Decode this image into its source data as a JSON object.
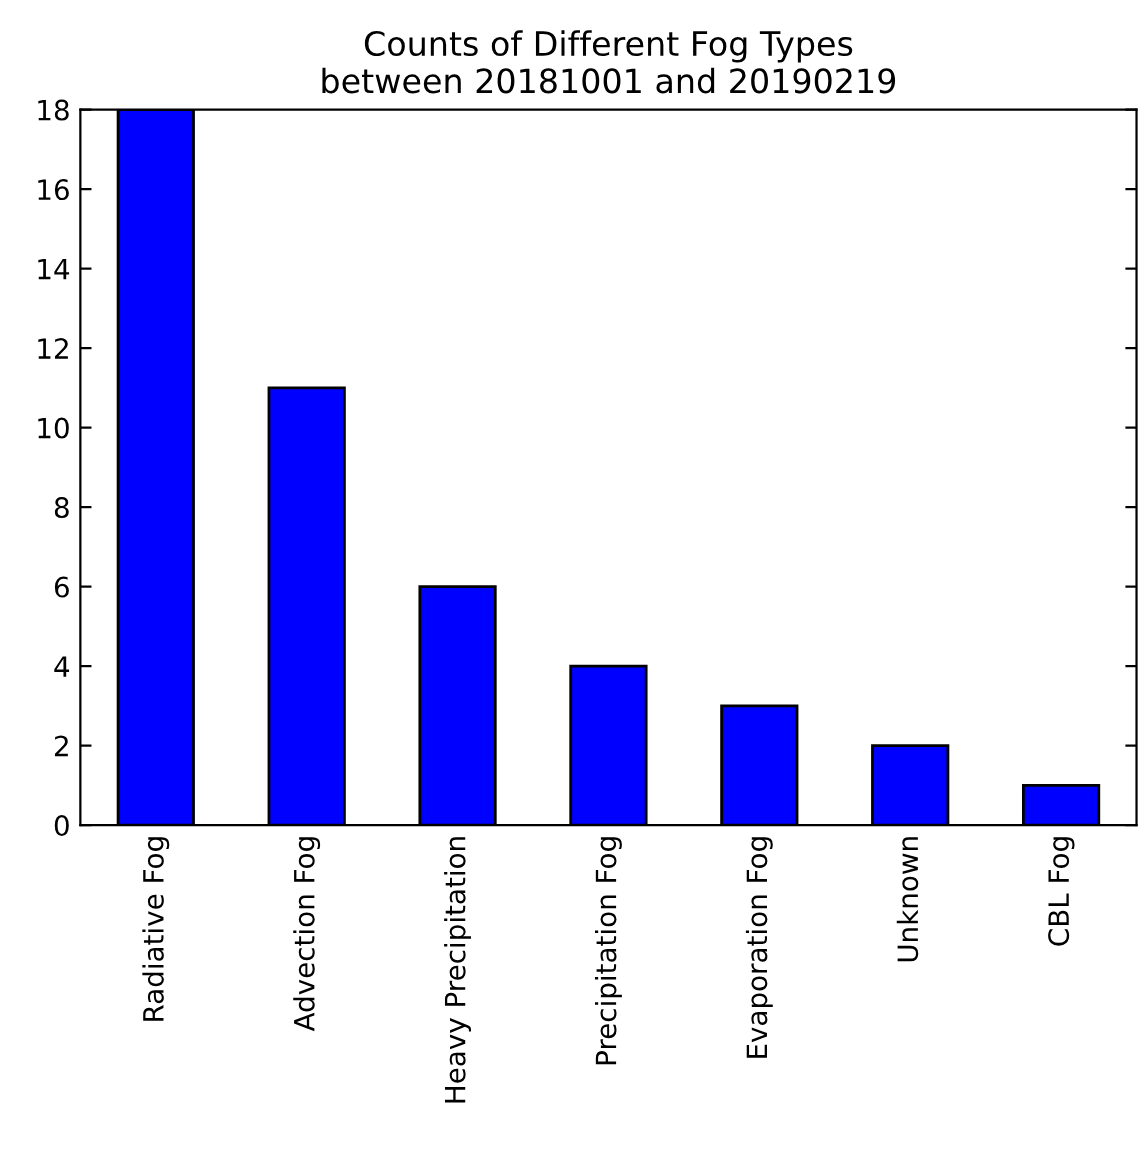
{
  "chart_data": {
    "type": "bar",
    "title": "Counts of Different Fog Types\nbetween 20181001 and 20190219",
    "categories": [
      "Radiative Fog",
      "Advection Fog",
      "Heavy Precipitation",
      "Precipitation Fog",
      "Evaporation Fog",
      "Unknown",
      "CBL Fog"
    ],
    "values": [
      18,
      11,
      6,
      4,
      3,
      2,
      1
    ],
    "color": "#0000ff",
    "ylim": [
      0,
      18
    ],
    "yticks": [
      0,
      2,
      4,
      6,
      8,
      10,
      12,
      14,
      16,
      18
    ],
    "grid": false
  }
}
